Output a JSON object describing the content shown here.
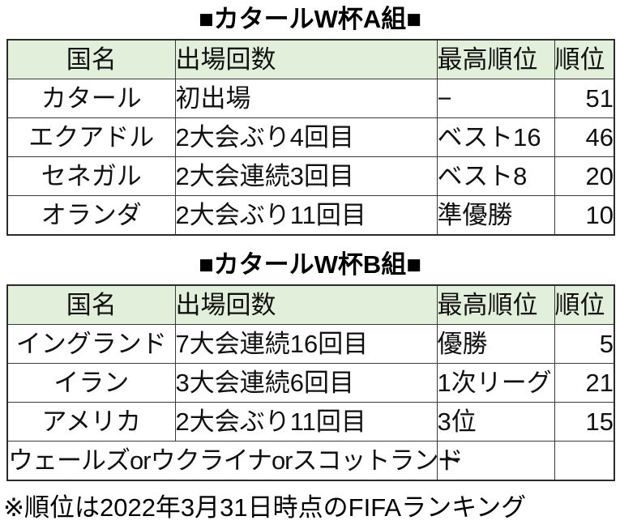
{
  "page": {
    "background": "#ffffff",
    "header_bg": "#e2efda",
    "border_color": "#2b2b2b",
    "text_color": "#111111"
  },
  "tables": [
    {
      "title": "■カタールW杯A組■",
      "headers": [
        "国名",
        "出場回数",
        "最高順位",
        "順位"
      ],
      "rows": [
        {
          "country": "カタール",
          "appearances": "初出場",
          "best": "−",
          "rank": "51"
        },
        {
          "country": "エクアドル",
          "appearances": "2大会ぶり4回目",
          "best": "ベスト16",
          "rank": "46"
        },
        {
          "country": "セネガル",
          "appearances": "2大会連続3回目",
          "best": "ベスト8",
          "rank": "20"
        },
        {
          "country": "オランダ",
          "appearances": "2大会ぶり11回目",
          "best": "準優勝",
          "rank": "10"
        }
      ]
    },
    {
      "title": "■カタールW杯B組■",
      "headers": [
        "国名",
        "出場回数",
        "最高順位",
        "順位"
      ],
      "rows": [
        {
          "country": "イングランド",
          "appearances": "7大会連続16回目",
          "best": "優勝",
          "rank": "5"
        },
        {
          "country": "イラン",
          "appearances": "3大会連続6回目",
          "best": "1次リーグ",
          "rank": "21"
        },
        {
          "country": "アメリカ",
          "appearances": "2大会ぶり11回目",
          "best": "3位",
          "rank": "15"
        },
        {
          "country": "ウェールズorウクライナorスコットランド",
          "appearances": "",
          "best": "ー",
          "rank": ""
        }
      ]
    }
  ],
  "footnote": "※順位は2022年3月31日時点のFIFAランキング"
}
